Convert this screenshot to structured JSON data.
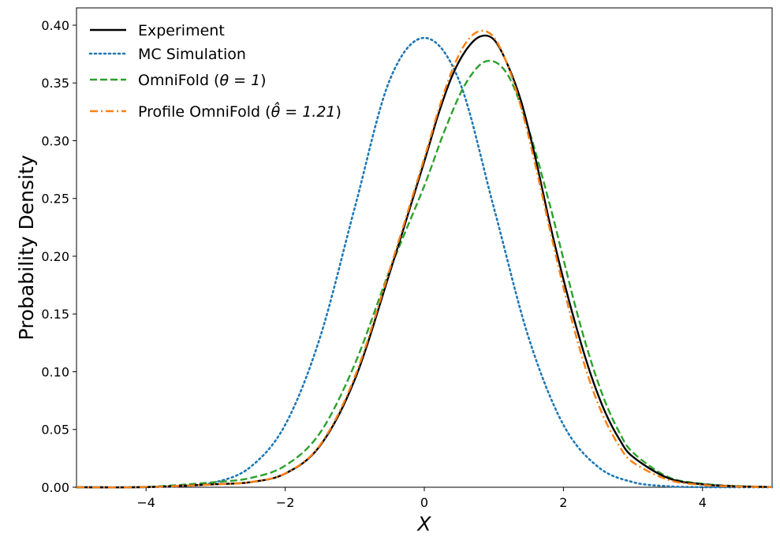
{
  "chart_data": {
    "type": "line",
    "title": "",
    "xlabel": "X",
    "ylabel": "Probability Density",
    "xlim": [
      -5,
      5
    ],
    "ylim": [
      0,
      0.415
    ],
    "xticks": [
      -4,
      -2,
      0,
      2,
      4
    ],
    "xtick_labels": [
      "−4",
      "−2",
      "0",
      "2",
      "4"
    ],
    "yticks": [
      0,
      0.05,
      0.1,
      0.15,
      0.2,
      0.25,
      0.3,
      0.35,
      0.4
    ],
    "ytick_labels": [
      "0.00",
      "0.05",
      "0.10",
      "0.15",
      "0.20",
      "0.25",
      "0.30",
      "0.35",
      "0.40"
    ],
    "grid": false,
    "legend_position": "top-left",
    "series": [
      {
        "name": "Experiment",
        "label_main": "Experiment",
        "label_math": "",
        "label_tail": "",
        "color": "#000000",
        "style": "solid",
        "x": [
          -5,
          -4,
          -3,
          -2.5,
          -2,
          -1.5,
          -1,
          -0.5,
          0,
          0.2,
          0.4,
          0.6,
          0.8,
          1.0,
          1.2,
          1.4,
          1.6,
          1.8,
          2,
          2.2,
          2.4,
          2.6,
          2.8,
          3,
          3.5,
          4,
          4.5,
          5
        ],
        "y": [
          0.0,
          0.0001,
          0.0026,
          0.0044,
          0.0118,
          0.0358,
          0.0931,
          0.1851,
          0.2821,
          0.3225,
          0.3561,
          0.3785,
          0.3902,
          0.3876,
          0.3655,
          0.3325,
          0.2843,
          0.2295,
          0.18,
          0.1355,
          0.0964,
          0.065,
          0.042,
          0.0263,
          0.008,
          0.0025,
          0.0008,
          0.0002
        ]
      },
      {
        "name": "MC Simulation",
        "label_main": "MC Simulation",
        "label_math": "",
        "label_tail": "",
        "color": "#1f77b4",
        "style": "dotted",
        "x": [
          -5,
          -4.5,
          -4,
          -3.5,
          -3,
          -2.5,
          -2,
          -1.5,
          -1,
          -0.5,
          0,
          0.5,
          1,
          1.5,
          2,
          2.5,
          3,
          3.5,
          4,
          4.5,
          5
        ],
        "y": [
          0.0,
          0.0,
          0.0001,
          0.0009,
          0.0044,
          0.0175,
          0.054,
          0.1295,
          0.242,
          0.3521,
          0.389,
          0.3521,
          0.242,
          0.1295,
          0.054,
          0.0175,
          0.0044,
          0.0009,
          0.0001,
          0.0,
          0.0
        ]
      },
      {
        "name": "OmniFold (θ = 1)",
        "label_main": "OmniFold (",
        "label_math": "θ = 1",
        "label_tail": ")",
        "color": "#2ca02c",
        "style": "dashed",
        "x": [
          -5,
          -4,
          -3,
          -2.5,
          -2,
          -1.5,
          -1,
          -0.5,
          0,
          0.3,
          0.6,
          0.9,
          1.2,
          1.5,
          1.8,
          2,
          2.2,
          2.4,
          2.6,
          2.8,
          3,
          3.5,
          4,
          4.5,
          5
        ],
        "y": [
          0.0,
          0.0003,
          0.0045,
          0.008,
          0.0187,
          0.047,
          0.1065,
          0.1875,
          0.261,
          0.31,
          0.35,
          0.369,
          0.357,
          0.31,
          0.2455,
          0.1975,
          0.15,
          0.1085,
          0.074,
          0.048,
          0.03,
          0.009,
          0.003,
          0.001,
          0.0002
        ]
      },
      {
        "name": "Profile OmniFold (θ̂ = 1.21)",
        "label_main": "Profile OmniFold (",
        "label_math": "θ̂ = 1.21",
        "label_tail": ")",
        "color": "#ff7f0e",
        "style": "dashdot",
        "x": [
          -5,
          -4,
          -3,
          -2.5,
          -2,
          -1.5,
          -1,
          -0.5,
          0,
          0.2,
          0.4,
          0.6,
          0.8,
          1.0,
          1.2,
          1.4,
          1.6,
          1.8,
          2,
          2.2,
          2.4,
          2.6,
          2.8,
          3,
          3.5,
          4,
          4.5,
          5
        ],
        "y": [
          0.0,
          0.0001,
          0.0025,
          0.0045,
          0.012,
          0.0365,
          0.0955,
          0.188,
          0.285,
          0.326,
          0.361,
          0.385,
          0.395,
          0.3895,
          0.365,
          0.327,
          0.278,
          0.2245,
          0.173,
          0.127,
          0.088,
          0.058,
          0.036,
          0.0215,
          0.0065,
          0.002,
          0.0006,
          0.0001
        ]
      }
    ]
  }
}
